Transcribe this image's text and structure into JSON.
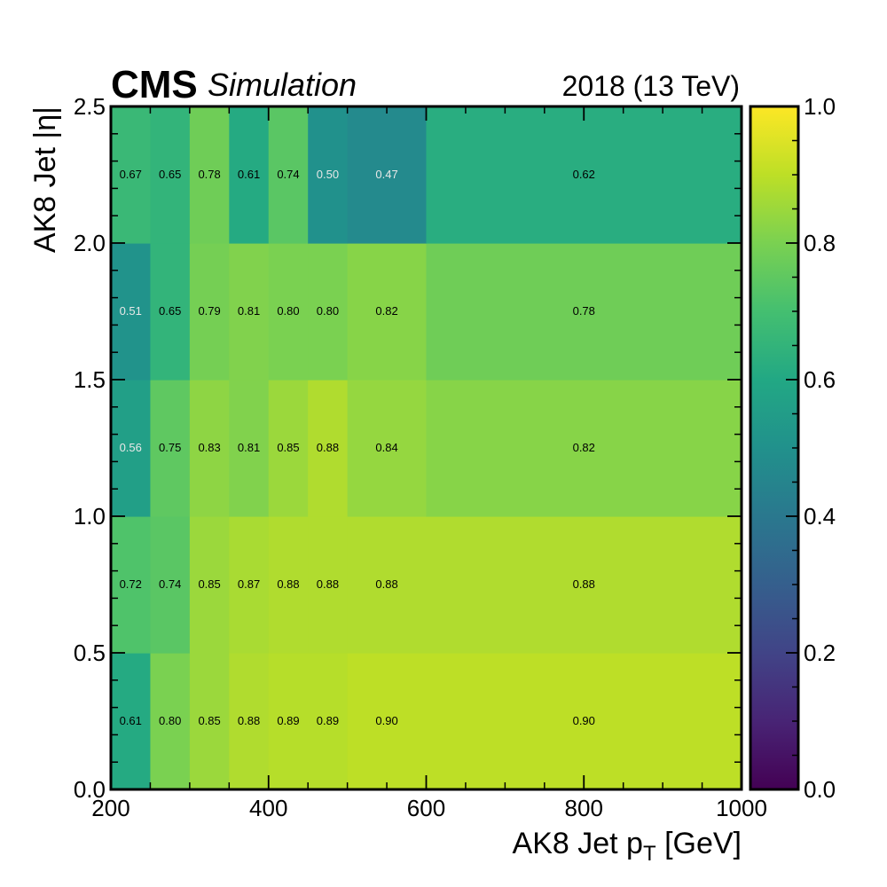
{
  "header": {
    "experiment": "CMS",
    "status": "Simulation",
    "lumi": "2018 (13 TeV)"
  },
  "chart_data": {
    "type": "heatmap",
    "title": "",
    "xlabel_main": "AK8 Jet p",
    "xlabel_sub": "T",
    "xlabel_unit": " [GeV]",
    "ylabel": "AK8 Jet |η|",
    "x_edges": [
      200,
      250,
      300,
      350,
      400,
      450,
      500,
      600,
      1000
    ],
    "y_edges": [
      0.0,
      0.5,
      1.0,
      1.5,
      2.0,
      2.5
    ],
    "xlim": [
      200,
      1000
    ],
    "ylim": [
      0.0,
      2.5
    ],
    "x_ticks": [
      "200",
      "400",
      "600",
      "800",
      "1000"
    ],
    "x_tick_values": [
      200,
      400,
      600,
      800,
      1000
    ],
    "y_ticks": [
      "0.0",
      "0.5",
      "1.0",
      "1.5",
      "2.0",
      "2.5"
    ],
    "y_tick_values": [
      0.0,
      0.5,
      1.0,
      1.5,
      2.0,
      2.5
    ],
    "values": [
      [
        0.61,
        0.8,
        0.85,
        0.88,
        0.89,
        0.89,
        0.9,
        0.9
      ],
      [
        0.72,
        0.74,
        0.85,
        0.87,
        0.88,
        0.88,
        0.88,
        0.88
      ],
      [
        0.56,
        0.75,
        0.83,
        0.81,
        0.85,
        0.88,
        0.84,
        0.82
      ],
      [
        0.51,
        0.65,
        0.79,
        0.81,
        0.8,
        0.8,
        0.82,
        0.78
      ],
      [
        0.67,
        0.65,
        0.78,
        0.61,
        0.74,
        0.5,
        0.47,
        0.62
      ]
    ],
    "value_labels": [
      [
        "0.61",
        "0.80",
        "0.85",
        "0.88",
        "0.89",
        "0.89",
        "0.90",
        "0.90"
      ],
      [
        "0.72",
        "0.74",
        "0.85",
        "0.87",
        "0.88",
        "0.88",
        "0.88",
        "0.88"
      ],
      [
        "0.56",
        "0.75",
        "0.83",
        "0.81",
        "0.85",
        "0.88",
        "0.84",
        "0.82"
      ],
      [
        "0.51",
        "0.65",
        "0.79",
        "0.81",
        "0.80",
        "0.80",
        "0.82",
        "0.78"
      ],
      [
        "0.67",
        "0.65",
        "0.78",
        "0.61",
        "0.74",
        "0.50",
        "0.47",
        "0.62"
      ]
    ],
    "colorbar": {
      "colormap": "viridis",
      "range": [
        0.0,
        1.0
      ],
      "ticks": [
        "0.0",
        "0.2",
        "0.4",
        "0.6",
        "0.8",
        "1.0"
      ],
      "tick_values": [
        0.0,
        0.2,
        0.4,
        0.6,
        0.8,
        1.0
      ]
    },
    "grid": false,
    "legend": "none"
  }
}
